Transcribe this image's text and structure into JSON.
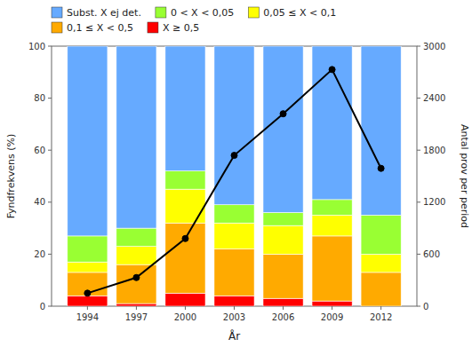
{
  "chart_data": {
    "type": "bar",
    "stacked": true,
    "x": [
      1994,
      1997,
      2000,
      2003,
      2006,
      2009,
      2012
    ],
    "xlim": [
      1991.8,
      2014.2
    ],
    "xticks": [
      1994,
      1997,
      2000,
      2003,
      2006,
      2009,
      2012
    ],
    "x_label": "År",
    "y_label": "Fyndfrekvens (%)",
    "y2_label": "Antal prov per period",
    "ylim": [
      0,
      100
    ],
    "yticks": [
      0,
      20,
      40,
      60,
      80,
      100
    ],
    "y2lim": [
      0,
      3000
    ],
    "y2ticks": [
      0,
      600,
      1200,
      1800,
      2400,
      3000
    ],
    "grid": false,
    "legend": "top",
    "series": [
      {
        "name": "X ≥ 0,5",
        "color": "#ff0000",
        "values": [
          4,
          1,
          5,
          4,
          3,
          2,
          0
        ]
      },
      {
        "name": "0,1 ≤ X < 0,5",
        "color": "#ffaa00",
        "values": [
          9,
          15,
          27,
          18,
          17,
          25,
          13
        ]
      },
      {
        "name": "0,05 ≤ X < 0,1",
        "color": "#ffff00",
        "values": [
          4,
          7,
          13,
          10,
          11,
          8,
          7
        ]
      },
      {
        "name": "0 < X < 0,05",
        "color": "#99ff33",
        "values": [
          10,
          7,
          7,
          7,
          5,
          6,
          15
        ]
      },
      {
        "name": "Subst. X ej det.",
        "color": "#66aaff",
        "values": [
          73,
          70,
          48,
          61,
          64,
          59,
          65
        ]
      },
      {
        "type": "line",
        "axis": "y2",
        "color": "#000000",
        "marker": "circle",
        "values": [
          150,
          330,
          780,
          1740,
          2220,
          2730,
          1590
        ]
      }
    ]
  }
}
